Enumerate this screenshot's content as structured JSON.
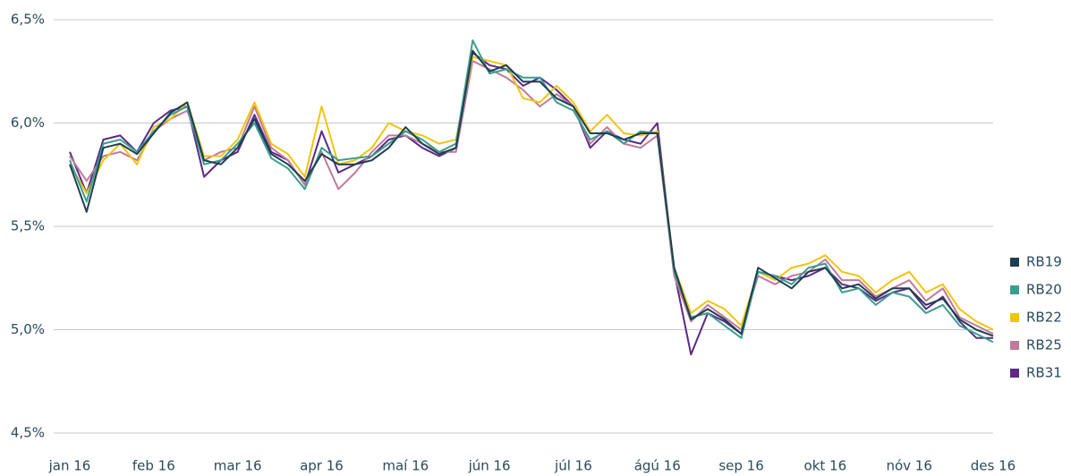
{
  "chart_data": {
    "type": "line",
    "categories": [
      "jan 16",
      null,
      null,
      null,
      null,
      "feb 16",
      null,
      null,
      null,
      null,
      "mar 16",
      null,
      null,
      null,
      null,
      "apr 16",
      null,
      null,
      null,
      null,
      "maí 16",
      null,
      null,
      null,
      null,
      "jún 16",
      null,
      null,
      null,
      null,
      "júl 16",
      null,
      null,
      null,
      null,
      "ágú 16",
      null,
      null,
      null,
      null,
      "sep 16",
      null,
      null,
      null,
      null,
      "okt 16",
      null,
      null,
      null,
      null,
      "nóv 16",
      null,
      null,
      null,
      null,
      "des 16"
    ],
    "series": [
      {
        "name": "RB19",
        "color": "#1d3f4f",
        "values": [
          5.8,
          5.57,
          5.88,
          5.9,
          5.85,
          5.95,
          6.05,
          6.1,
          5.82,
          5.8,
          5.88,
          6.02,
          5.85,
          5.8,
          5.72,
          5.85,
          5.8,
          5.8,
          5.82,
          5.88,
          5.98,
          5.9,
          5.85,
          5.88,
          6.35,
          6.25,
          6.28,
          6.2,
          6.2,
          6.12,
          6.08,
          5.95,
          5.95,
          5.92,
          5.95,
          5.95,
          5.3,
          5.05,
          5.1,
          5.05,
          4.98,
          5.3,
          5.25,
          5.2,
          5.28,
          5.3,
          5.2,
          5.22,
          5.15,
          5.2,
          5.2,
          5.12,
          5.15,
          5.05,
          5.0,
          4.97
        ]
      },
      {
        "name": "RB20",
        "color": "#3a9e8f",
        "values": [
          5.82,
          5.62,
          5.9,
          5.92,
          5.86,
          5.96,
          6.04,
          6.08,
          5.8,
          5.82,
          5.9,
          6.0,
          5.83,
          5.78,
          5.68,
          5.88,
          5.82,
          5.83,
          5.84,
          5.9,
          5.96,
          5.92,
          5.86,
          5.9,
          6.4,
          6.24,
          6.26,
          6.22,
          6.22,
          6.1,
          6.06,
          5.92,
          5.96,
          5.9,
          5.96,
          5.95,
          5.28,
          5.06,
          5.08,
          5.02,
          4.96,
          5.28,
          5.26,
          5.22,
          5.3,
          5.32,
          5.18,
          5.2,
          5.12,
          5.18,
          5.16,
          5.08,
          5.12,
          5.02,
          4.98,
          4.94
        ]
      },
      {
        "name": "RB22",
        "color": "#f2c40f",
        "values": [
          5.8,
          5.66,
          5.82,
          5.9,
          5.8,
          5.98,
          6.02,
          6.1,
          5.84,
          5.84,
          5.92,
          6.1,
          5.9,
          5.85,
          5.74,
          6.08,
          5.8,
          5.82,
          5.88,
          6.0,
          5.96,
          5.94,
          5.9,
          5.92,
          6.32,
          6.3,
          6.28,
          6.12,
          6.1,
          6.18,
          6.1,
          5.96,
          6.04,
          5.95,
          5.94,
          5.96,
          5.3,
          5.08,
          5.14,
          5.1,
          5.02,
          5.28,
          5.24,
          5.3,
          5.32,
          5.36,
          5.28,
          5.26,
          5.18,
          5.24,
          5.28,
          5.18,
          5.22,
          5.1,
          5.04,
          5.0
        ]
      },
      {
        "name": "RB25",
        "color": "#c07a9a",
        "values": [
          5.84,
          5.72,
          5.84,
          5.86,
          5.82,
          5.96,
          6.02,
          6.06,
          5.82,
          5.86,
          5.88,
          6.08,
          5.88,
          5.82,
          5.7,
          5.86,
          5.68,
          5.76,
          5.86,
          5.94,
          5.94,
          5.9,
          5.86,
          5.86,
          6.3,
          6.26,
          6.22,
          6.16,
          6.08,
          6.14,
          6.08,
          5.9,
          5.98,
          5.9,
          5.88,
          5.94,
          5.26,
          5.04,
          5.12,
          5.06,
          5.0,
          5.26,
          5.22,
          5.26,
          5.28,
          5.34,
          5.24,
          5.24,
          5.16,
          5.2,
          5.24,
          5.14,
          5.2,
          5.06,
          5.02,
          4.98
        ]
      },
      {
        "name": "RB31",
        "color": "#5b2a86",
        "values": [
          5.86,
          5.66,
          5.92,
          5.94,
          5.86,
          6.0,
          6.06,
          6.08,
          5.74,
          5.82,
          5.86,
          6.04,
          5.86,
          5.82,
          5.7,
          5.96,
          5.76,
          5.8,
          5.84,
          5.92,
          5.94,
          5.88,
          5.84,
          5.88,
          6.34,
          6.28,
          6.26,
          6.18,
          6.22,
          6.16,
          6.08,
          5.88,
          5.96,
          5.92,
          5.9,
          6.0,
          5.28,
          4.88,
          5.08,
          5.04,
          4.98,
          5.28,
          5.26,
          5.24,
          5.26,
          5.3,
          5.22,
          5.2,
          5.14,
          5.18,
          5.2,
          5.1,
          5.16,
          5.04,
          4.96,
          4.96
        ]
      }
    ],
    "ylim": [
      4.5,
      6.5
    ],
    "yticks": [
      {
        "value": 4.5,
        "label": "4,5%"
      },
      {
        "value": 5.0,
        "label": "5,0%"
      },
      {
        "value": 5.5,
        "label": "5,5%"
      },
      {
        "value": 6.0,
        "label": "6,0%"
      },
      {
        "value": 6.5,
        "label": "6,5%"
      }
    ],
    "grid": true,
    "legend": "right"
  }
}
